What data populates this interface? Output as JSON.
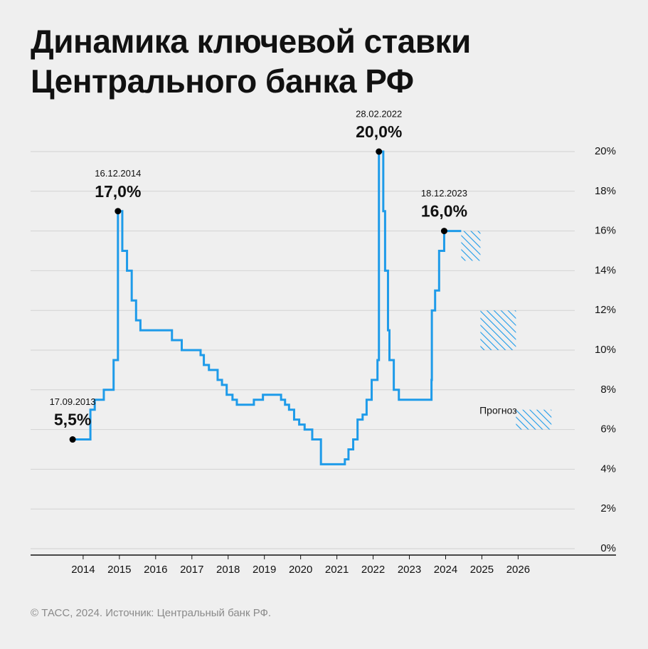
{
  "chart_data": {
    "type": "line",
    "title": "Динамика ключевой ставки Центрального банка РФ",
    "source": "© ТАСС, 2024. Источник: Центральный банк РФ.",
    "step": true,
    "grid": true,
    "xlim": [
      2012.55,
      2028.7
    ],
    "xticks": [
      2014,
      2015,
      2016,
      2017,
      2018,
      2019,
      2020,
      2021,
      2022,
      2023,
      2024,
      2025,
      2026
    ],
    "ylim": [
      0,
      20
    ],
    "yticks": [
      {
        "value": 0,
        "label": "0%"
      },
      {
        "value": 2,
        "label": "2%"
      },
      {
        "value": 4,
        "label": "4%"
      },
      {
        "value": 6,
        "label": "6%"
      },
      {
        "value": 8,
        "label": "8%"
      },
      {
        "value": 10,
        "label": "10%"
      },
      {
        "value": 12,
        "label": "12%"
      },
      {
        "value": 14,
        "label": "14%"
      },
      {
        "value": 16,
        "label": "16%"
      },
      {
        "value": 18,
        "label": "18%"
      },
      {
        "value": 20,
        "label": "20%"
      }
    ],
    "x": [
      2013.71,
      2014.2,
      2014.32,
      2014.57,
      2014.84,
      2014.96,
      2015.08,
      2015.21,
      2015.34,
      2015.46,
      2015.58,
      2016.45,
      2016.72,
      2017.24,
      2017.33,
      2017.47,
      2017.71,
      2017.83,
      2017.96,
      2018.12,
      2018.24,
      2018.71,
      2018.96,
      2019.46,
      2019.57,
      2019.68,
      2019.82,
      2019.96,
      2020.11,
      2020.32,
      2020.56,
      2021.22,
      2021.32,
      2021.45,
      2021.57,
      2021.71,
      2021.82,
      2021.96,
      2022.12,
      2022.16,
      2022.28,
      2022.33,
      2022.41,
      2022.45,
      2022.57,
      2022.71,
      2023.61,
      2023.62,
      2023.71,
      2023.82,
      2023.96,
      2024.43
    ],
    "series": [
      {
        "color": "#1e9be9",
        "values": [
          5.5,
          7.0,
          7.5,
          8.0,
          9.5,
          17.0,
          15.0,
          14.0,
          12.5,
          11.5,
          11.0,
          10.5,
          10.0,
          9.75,
          9.25,
          9.0,
          8.5,
          8.25,
          7.75,
          7.5,
          7.25,
          7.5,
          7.75,
          7.5,
          7.25,
          7.0,
          6.5,
          6.25,
          6.0,
          5.5,
          4.25,
          4.5,
          5.0,
          5.5,
          6.5,
          6.75,
          7.5,
          8.5,
          9.5,
          20.0,
          17.0,
          14.0,
          11.0,
          9.5,
          8.0,
          7.5,
          8.5,
          12.0,
          13.0,
          15.0,
          16.0,
          16.0
        ]
      }
    ],
    "annotations": [
      {
        "date": "17.09.2013",
        "x": 2013.71,
        "value": 5.5,
        "value_label": "5,5%"
      },
      {
        "date": "16.12.2014",
        "x": 2014.96,
        "value": 17.0,
        "value_label": "17,0%"
      },
      {
        "date": "28.02.2022",
        "x": 2022.16,
        "value": 20.0,
        "value_label": "20,0%"
      },
      {
        "date": "18.12.2023",
        "x": 2023.96,
        "value": 16.0,
        "value_label": "16,0%"
      }
    ],
    "forecast": {
      "label": "Прогноз",
      "color": "#1e9be9",
      "x_start": [
        2024.43,
        2024.96,
        2025.94
      ],
      "x_end": [
        2024.96,
        2025.94,
        2026.92
      ],
      "low": [
        14.5,
        10,
        6
      ],
      "high": [
        16,
        12,
        7
      ]
    }
  }
}
